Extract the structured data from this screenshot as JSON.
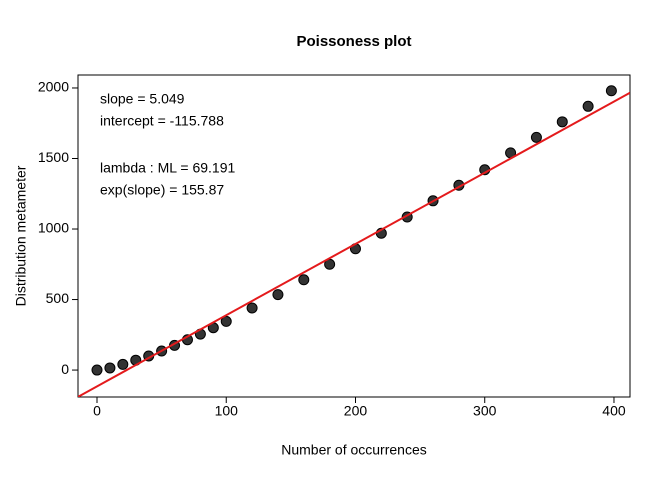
{
  "chart_data": {
    "type": "scatter",
    "title": "Poissoness plot",
    "xlabel": "Number of occurrences",
    "ylabel": "Distribution metameter",
    "annotations": [
      "slope = 5.049",
      "intercept = -115.788",
      "lambda : ML = 69.191",
      "exp(slope) = 155.87"
    ],
    "x": [
      0,
      10,
      20,
      30,
      40,
      50,
      60,
      70,
      80,
      90,
      100,
      120,
      140,
      160,
      180,
      200,
      220,
      240,
      260,
      280,
      300,
      320,
      340,
      360,
      380,
      398
    ],
    "y": [
      0,
      15,
      40,
      70,
      100,
      135,
      175,
      215,
      255,
      300,
      345,
      440,
      535,
      640,
      750,
      860,
      970,
      1085,
      1200,
      1310,
      1420,
      1540,
      1650,
      1760,
      1870,
      1980
    ],
    "color": "#333333",
    "fit_line": {
      "slope": 5.049,
      "intercept": -115.788,
      "color": "#e41a1c"
    },
    "xlim": [
      -14.7,
      412.4
    ],
    "ylim": [
      -191,
      2092
    ],
    "xticks": [
      0,
      100,
      200,
      300,
      400
    ],
    "yticks": [
      0,
      500,
      1000,
      1500,
      2000
    ]
  }
}
